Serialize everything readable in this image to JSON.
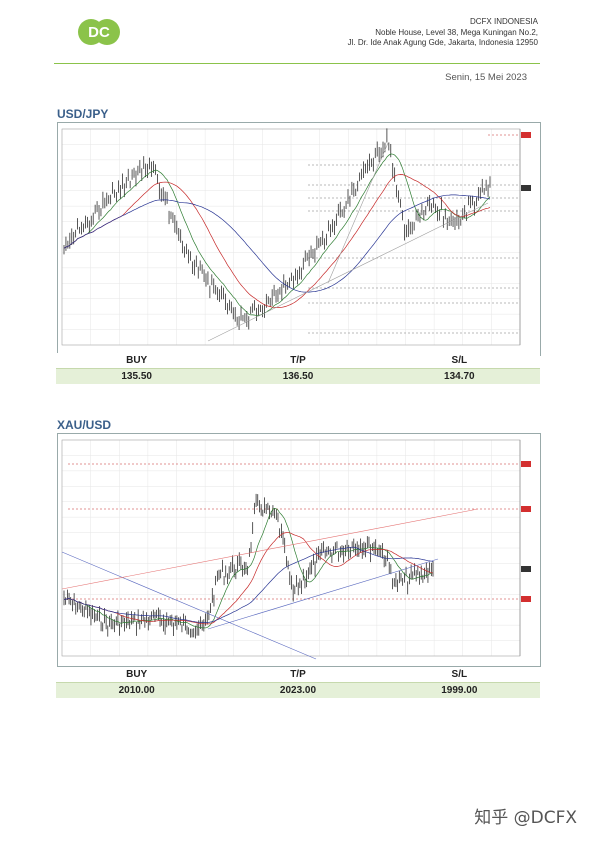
{
  "header": {
    "company_name": "DCFX INDONESIA",
    "address_line1": "Noble House, Level 38, Mega Kuningan No.2,",
    "address_line2": "Jl. Dr. Ide Anak Agung Gde, Jakarta, Indonesia 12950",
    "date": "Senin, 15 Mei 2023",
    "logo_text": "DC",
    "brand_color": "#8bc34a"
  },
  "sections": [
    {
      "title": "USD/JPY",
      "labels": {
        "buy": "BUY",
        "tp": "T/P",
        "sl": "S/L"
      },
      "values": {
        "buy": "135.50",
        "tp": "136.50",
        "sl": "134.70"
      }
    },
    {
      "title": "XAU/USD",
      "labels": {
        "buy": "BUY",
        "tp": "T/P",
        "sl": "S/L"
      },
      "values": {
        "buy": "2010.00",
        "tp": "2023.00",
        "sl": "1999.00"
      }
    }
  ],
  "watermark": "知乎 @DCFX"
}
